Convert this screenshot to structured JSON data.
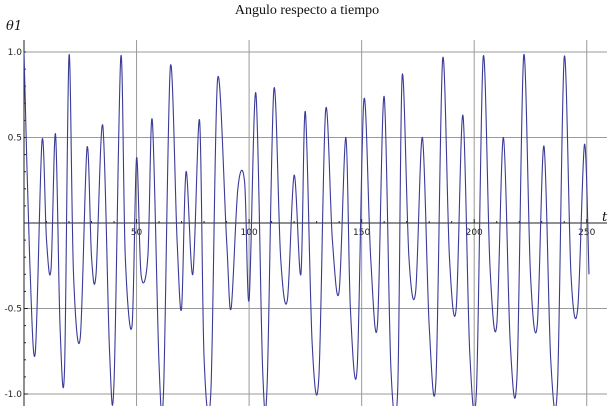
{
  "chart_data": {
    "type": "line",
    "title": "Angulo respecto a tiempo",
    "xlabel": "t",
    "ylabel": "θ1",
    "xlim": [
      0,
      255
    ],
    "ylim": [
      -1.0,
      1.0
    ],
    "grid": true,
    "x_ticks": [
      50,
      100,
      150,
      200,
      250
    ],
    "y_ticks": [
      -1.0,
      -0.5,
      0.5,
      1.0
    ],
    "x_tick_labels": [
      "50",
      "100",
      "150",
      "200",
      "250"
    ],
    "y_tick_labels": [
      "-1.0",
      "-0.5",
      "0.5",
      "1.0"
    ],
    "series": [
      {
        "color": "#3a3a98",
        "x": [
          0,
          2.5,
          5,
          8,
          10,
          12,
          14,
          16,
          18,
          20,
          22,
          25,
          28,
          30,
          32,
          35,
          38,
          40,
          43,
          45,
          48,
          50,
          52,
          55,
          57,
          60,
          62,
          65,
          68,
          70,
          72,
          75,
          78,
          80,
          83,
          86,
          90,
          92,
          95,
          98,
          100,
          103,
          106,
          108,
          111,
          114,
          117,
          120,
          123,
          125,
          128,
          131,
          134,
          137,
          140,
          143,
          145,
          148,
          151,
          154,
          157,
          160,
          163,
          166,
          168,
          171,
          174,
          177,
          180,
          183,
          186,
          189,
          192,
          195,
          198,
          201,
          204,
          207,
          210,
          213,
          216,
          219,
          222,
          225,
          228,
          231,
          234,
          237,
          240,
          243,
          246,
          249,
          251
        ],
        "y": [
          1.0,
          -0.2,
          -0.76,
          0.48,
          -0.1,
          -0.27,
          0.52,
          -0.6,
          -0.86,
          0.98,
          -0.3,
          -0.67,
          0.44,
          -0.2,
          -0.3,
          0.57,
          -0.75,
          -0.93,
          0.97,
          -0.2,
          -0.6,
          0.38,
          -0.3,
          -0.2,
          0.6,
          -0.83,
          -0.98,
          0.91,
          -0.1,
          -0.5,
          0.3,
          -0.3,
          0.6,
          -0.79,
          -0.99,
          0.84,
          -0.1,
          -0.5,
          0.2,
          0.24,
          -0.45,
          0.76,
          -0.85,
          -0.95,
          0.78,
          -0.2,
          -0.45,
          0.28,
          -0.3,
          0.65,
          -0.7,
          -0.9,
          0.66,
          -0.1,
          -0.4,
          0.5,
          -0.5,
          -0.85,
          0.72,
          -0.2,
          -0.6,
          0.74,
          -0.85,
          -0.98,
          0.86,
          -0.2,
          -0.4,
          0.5,
          -0.6,
          -0.92,
          0.96,
          -0.2,
          -0.5,
          0.63,
          -0.75,
          -0.98,
          0.97,
          -0.25,
          -0.6,
          0.5,
          -0.7,
          -0.9,
          0.98,
          -0.3,
          -0.6,
          0.45,
          -0.8,
          -0.95,
          0.97,
          -0.3,
          -0.5,
          0.46,
          -0.3
        ]
      }
    ]
  }
}
